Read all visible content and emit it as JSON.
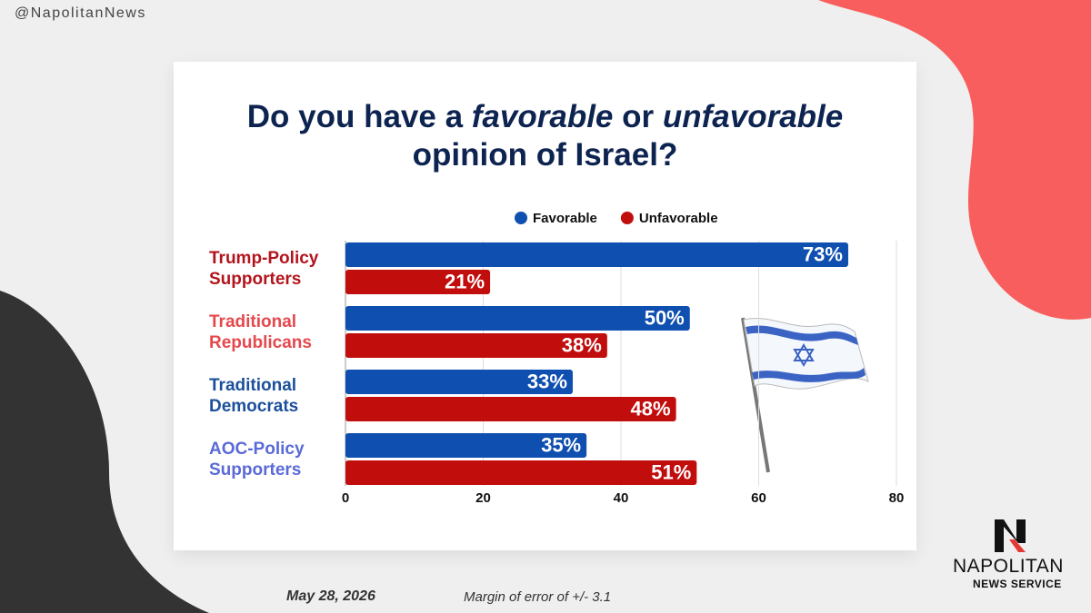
{
  "handle": "@NapolitanNews",
  "date": "May 28, 2026",
  "note": "Margin of error of +/- 3.1",
  "logo": {
    "name": "NAPOLITAN",
    "subtitle": "NEWS SERVICE"
  },
  "chart_data": {
    "type": "hbar",
    "title": [
      [
        {
          "text": "Do you have a ",
          "italic": false
        },
        {
          "text": "favorable",
          "italic": true
        },
        {
          "text": " or ",
          "italic": false
        },
        {
          "text": "unfavorable",
          "italic": true
        }
      ],
      [
        {
          "text": "opinion of Israel?",
          "italic": false
        }
      ]
    ],
    "categories": [
      "Trump-Policy Supporters",
      "Traditional Republicans",
      "Traditional Democrats",
      "AOC-Policy Supporters"
    ],
    "category_colors": [
      "#b3141c",
      "#e5484d",
      "#1c4f9c",
      "#5a6ad8"
    ],
    "series": [
      {
        "name": "Favorable",
        "color": "#0f4fb0",
        "values": [
          73,
          50,
          33,
          35
        ],
        "value_labels": [
          "73%",
          "50%",
          "33%",
          "35%"
        ]
      },
      {
        "name": "Unfavorable",
        "color": "#c20d0d",
        "values": [
          21,
          38,
          48,
          51
        ],
        "value_labels": [
          "21%",
          "38%",
          "48%",
          "51%"
        ]
      }
    ],
    "xlim": [
      0,
      80
    ],
    "xticks": [
      0,
      20,
      40,
      60,
      80
    ],
    "grid": true,
    "legend": "top"
  }
}
